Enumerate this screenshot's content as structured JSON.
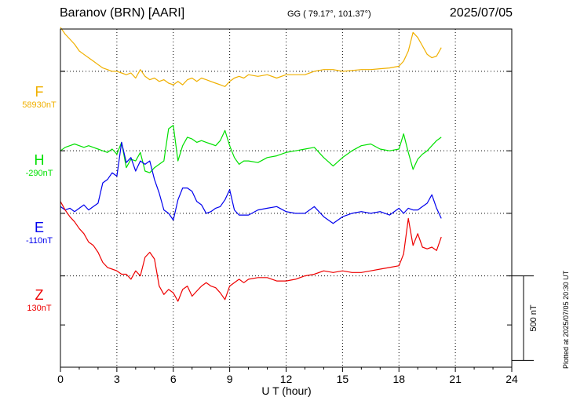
{
  "header": {
    "station": "Baranov (BRN)  [AARI]",
    "coords": "GG ( 79.17°, 101.37°)",
    "date": "2025/07/05"
  },
  "plotted_note": "Plotted at 2025/07/05 20:30 UT",
  "panels": [
    {
      "name": "F",
      "baseline": "58930nT",
      "color": "#f0b000"
    },
    {
      "name": "H",
      "baseline": "-290nT",
      "color": "#00e000"
    },
    {
      "name": "E",
      "baseline": "-110nT",
      "color": "#0000ee"
    },
    {
      "name": "Z",
      "baseline": "130nT",
      "color": "#ee0000"
    }
  ],
  "scale_label": "500 nT",
  "chart_data": {
    "type": "line",
    "xlabel": "U T (hour)",
    "x_ticks": [
      "0",
      "3",
      "6",
      "9",
      "12",
      "15",
      "18",
      "21",
      "24"
    ],
    "xlim": [
      0,
      24
    ],
    "ylim": [
      -1000,
      1000
    ],
    "grid": true,
    "scale_bar_nT": 500,
    "series": [
      {
        "name": "F",
        "offset": 750,
        "x": [
          0.0,
          0.25,
          0.5,
          0.75,
          1.0,
          1.25,
          1.5,
          1.75,
          2.0,
          2.25,
          2.5,
          2.75,
          3.0,
          3.25,
          3.5,
          3.75,
          4.0,
          4.25,
          4.5,
          4.75,
          5.0,
          5.25,
          5.5,
          5.75,
          6.0,
          6.25,
          6.5,
          6.75,
          7.0,
          7.25,
          7.5,
          7.75,
          8.0,
          8.25,
          8.5,
          8.75,
          9.0,
          9.25,
          9.5,
          9.75,
          10.0,
          10.5,
          11.0,
          11.5,
          12.0,
          12.5,
          13.0,
          13.5,
          14.0,
          14.5,
          15.0,
          15.5,
          16.0,
          16.5,
          17.0,
          17.5,
          18.0,
          18.25,
          18.5,
          18.75,
          19.0,
          19.25,
          19.5,
          19.75,
          20.0,
          20.25
        ],
        "y": [
          260,
          220,
          190,
          160,
          120,
          100,
          80,
          60,
          40,
          20,
          10,
          0,
          0,
          -10,
          -20,
          -10,
          -40,
          10,
          -30,
          -50,
          -40,
          -60,
          -50,
          -70,
          -80,
          -60,
          -80,
          -50,
          -40,
          -60,
          -40,
          -50,
          -60,
          -70,
          -80,
          -90,
          -60,
          -40,
          -30,
          -40,
          -20,
          -30,
          -20,
          -40,
          -20,
          -20,
          -20,
          0,
          10,
          10,
          0,
          5,
          10,
          10,
          15,
          20,
          30,
          60,
          120,
          230,
          200,
          150,
          100,
          80,
          90,
          140
        ]
      },
      {
        "name": "H",
        "offset": 280,
        "x": [
          0.0,
          0.25,
          0.5,
          0.75,
          1.0,
          1.25,
          1.5,
          1.75,
          2.0,
          2.25,
          2.5,
          2.75,
          3.0,
          3.25,
          3.5,
          3.75,
          4.0,
          4.25,
          4.5,
          4.75,
          5.0,
          5.25,
          5.5,
          5.75,
          6.0,
          6.25,
          6.5,
          6.75,
          7.0,
          7.25,
          7.5,
          7.75,
          8.0,
          8.25,
          8.5,
          8.75,
          9.0,
          9.25,
          9.5,
          9.75,
          10.0,
          10.5,
          11.0,
          11.5,
          12.0,
          12.5,
          13.0,
          13.5,
          14.0,
          14.5,
          15.0,
          15.5,
          16.0,
          16.5,
          17.0,
          17.5,
          18.0,
          18.25,
          18.5,
          18.75,
          19.0,
          19.25,
          19.5,
          19.75,
          20.0,
          20.25
        ],
        "y": [
          0,
          20,
          30,
          40,
          30,
          20,
          30,
          20,
          10,
          0,
          -10,
          10,
          -20,
          50,
          -100,
          -50,
          -60,
          -10,
          -120,
          -130,
          -100,
          -80,
          -60,
          130,
          150,
          -60,
          30,
          80,
          70,
          50,
          60,
          50,
          40,
          30,
          60,
          120,
          30,
          -40,
          -80,
          -60,
          -60,
          -70,
          -40,
          -30,
          -10,
          0,
          10,
          20,
          -40,
          -90,
          -40,
          0,
          30,
          40,
          10,
          0,
          10,
          100,
          -10,
          -110,
          -50,
          -20,
          0,
          30,
          60,
          80
        ]
      },
      {
        "name": "E",
        "offset": -90,
        "x": [
          0.0,
          0.25,
          0.5,
          0.75,
          1.0,
          1.25,
          1.5,
          1.75,
          2.0,
          2.25,
          2.5,
          2.75,
          3.0,
          3.25,
          3.5,
          3.75,
          4.0,
          4.25,
          4.5,
          4.75,
          5.0,
          5.25,
          5.5,
          5.75,
          6.0,
          6.25,
          6.5,
          6.75,
          7.0,
          7.25,
          7.5,
          7.75,
          8.0,
          8.25,
          8.5,
          8.75,
          9.0,
          9.25,
          9.5,
          9.75,
          10.0,
          10.5,
          11.0,
          11.5,
          12.0,
          12.5,
          13.0,
          13.5,
          14.0,
          14.5,
          15.0,
          15.5,
          16.0,
          16.5,
          17.0,
          17.5,
          18.0,
          18.25,
          18.5,
          18.75,
          19.0,
          19.25,
          19.5,
          19.75,
          20.0,
          20.25
        ],
        "y": [
          40,
          20,
          30,
          10,
          30,
          50,
          20,
          40,
          60,
          180,
          200,
          240,
          220,
          420,
          300,
          330,
          250,
          310,
          290,
          310,
          200,
          120,
          20,
          0,
          -40,
          80,
          150,
          150,
          130,
          70,
          50,
          0,
          10,
          30,
          40,
          80,
          140,
          20,
          -10,
          -10,
          -10,
          20,
          30,
          40,
          10,
          0,
          0,
          40,
          -20,
          -60,
          -20,
          0,
          10,
          0,
          10,
          -10,
          30,
          0,
          30,
          20,
          20,
          40,
          60,
          110,
          30,
          -30
        ]
      },
      {
        "name": "Z",
        "offset": -460,
        "x": [
          0.0,
          0.25,
          0.5,
          0.75,
          1.0,
          1.25,
          1.5,
          1.75,
          2.0,
          2.25,
          2.5,
          2.75,
          3.0,
          3.25,
          3.5,
          3.75,
          4.0,
          4.25,
          4.5,
          4.75,
          5.0,
          5.25,
          5.5,
          5.75,
          6.0,
          6.25,
          6.5,
          6.75,
          7.0,
          7.25,
          7.5,
          7.75,
          8.0,
          8.25,
          8.5,
          8.75,
          9.0,
          9.25,
          9.5,
          9.75,
          10.0,
          10.5,
          11.0,
          11.5,
          12.0,
          12.5,
          13.0,
          13.5,
          14.0,
          14.5,
          15.0,
          15.5,
          16.0,
          16.5,
          17.0,
          17.5,
          18.0,
          18.25,
          18.5,
          18.75,
          19.0,
          19.25,
          19.5,
          19.75,
          20.0,
          20.25
        ],
        "y": [
          440,
          390,
          350,
          320,
          280,
          250,
          200,
          180,
          140,
          80,
          50,
          40,
          30,
          10,
          10,
          -20,
          30,
          0,
          110,
          140,
          100,
          -60,
          -110,
          -80,
          -100,
          -150,
          -80,
          -60,
          -120,
          -90,
          -60,
          -40,
          -60,
          -70,
          -100,
          -140,
          -60,
          -40,
          -20,
          -40,
          -20,
          -10,
          -10,
          -30,
          -30,
          -20,
          0,
          10,
          30,
          20,
          30,
          20,
          20,
          30,
          40,
          50,
          60,
          130,
          340,
          180,
          250,
          170,
          160,
          170,
          150,
          230
        ]
      }
    ]
  }
}
